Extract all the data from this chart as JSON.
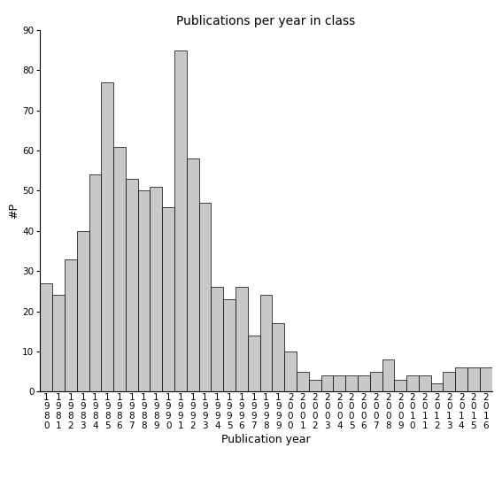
{
  "title": "Publications per year in class",
  "xlabel": "Publication year",
  "ylabel": "#P",
  "years": [
    1980,
    1981,
    1982,
    1983,
    1984,
    1985,
    1986,
    1987,
    1988,
    1989,
    1990,
    1991,
    1992,
    1993,
    1994,
    1995,
    1996,
    1997,
    1998,
    1999,
    2000,
    2001,
    2002,
    2003,
    2004,
    2005,
    2006,
    2007,
    2008,
    2009,
    2010,
    2011,
    2012,
    2013,
    2014,
    2015,
    2016
  ],
  "values": [
    27,
    24,
    33,
    40,
    54,
    77,
    61,
    53,
    50,
    51,
    46,
    85,
    58,
    47,
    26,
    23,
    26,
    14,
    24,
    17,
    10,
    5,
    3,
    4,
    4,
    4,
    4,
    5,
    8,
    3,
    4,
    4,
    2,
    5,
    6,
    6,
    6
  ],
  "bar_color": "#c8c8c8",
  "bar_edge_color": "#000000",
  "ylim": [
    0,
    90
  ],
  "yticks": [
    0,
    10,
    20,
    30,
    40,
    50,
    60,
    70,
    80,
    90
  ],
  "background_color": "#ffffff",
  "title_fontsize": 10,
  "axis_label_fontsize": 9,
  "tick_fontsize": 7.5
}
